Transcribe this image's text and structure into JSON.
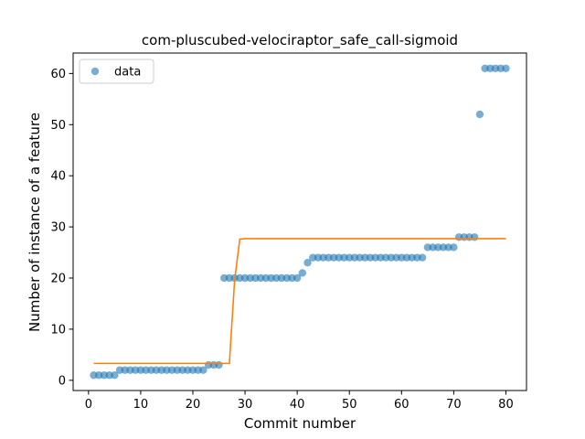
{
  "chart_data": {
    "type": "scatter",
    "title": "com-pluscubed-velociraptor_safe_call-sigmoid",
    "xlabel": "Commit number",
    "ylabel": "Number of instance of a feature",
    "xlim": [
      -2.95,
      83.95
    ],
    "ylim": [
      -2,
      64
    ],
    "xticks": [
      0,
      10,
      20,
      30,
      40,
      50,
      60,
      70,
      80
    ],
    "yticks": [
      0,
      10,
      20,
      30,
      40,
      50,
      60
    ],
    "legend": {
      "position": "top-left",
      "entries": [
        "data"
      ]
    },
    "grid": false,
    "series": [
      {
        "name": "data",
        "kind": "scatter",
        "color": "#1f77b4",
        "x": [
          1,
          2,
          3,
          4,
          5,
          6,
          7,
          8,
          9,
          10,
          11,
          12,
          13,
          14,
          15,
          16,
          17,
          18,
          19,
          20,
          21,
          22,
          23,
          24,
          25,
          26,
          27,
          28,
          29,
          30,
          31,
          32,
          33,
          34,
          35,
          36,
          37,
          38,
          39,
          40,
          41,
          42,
          43,
          44,
          45,
          46,
          47,
          48,
          49,
          50,
          51,
          52,
          53,
          54,
          55,
          56,
          57,
          58,
          59,
          60,
          61,
          62,
          63,
          64,
          65,
          66,
          67,
          68,
          69,
          70,
          71,
          72,
          73,
          74,
          75,
          76,
          77,
          78,
          79,
          80
        ],
        "y": [
          1,
          1,
          1,
          1,
          1,
          2,
          2,
          2,
          2,
          2,
          2,
          2,
          2,
          2,
          2,
          2,
          2,
          2,
          2,
          2,
          2,
          2,
          3,
          3,
          3,
          20,
          20,
          20,
          20,
          20,
          20,
          20,
          20,
          20,
          20,
          20,
          20,
          20,
          20,
          20,
          21,
          23,
          24,
          24,
          24,
          24,
          24,
          24,
          24,
          24,
          24,
          24,
          24,
          24,
          24,
          24,
          24,
          24,
          24,
          24,
          24,
          24,
          24,
          24,
          26,
          26,
          26,
          26,
          26,
          26,
          28,
          28,
          28,
          28,
          52,
          61,
          61,
          61,
          61,
          61
        ]
      },
      {
        "name": "",
        "kind": "line",
        "color": "#ff7f0e",
        "x": [
          1,
          2,
          3,
          4,
          5,
          6,
          7,
          8,
          9,
          10,
          11,
          12,
          13,
          14,
          15,
          16,
          17,
          18,
          19,
          20,
          21,
          22,
          23,
          24,
          25,
          26,
          27,
          28,
          29,
          30,
          31,
          32,
          33,
          34,
          35,
          36,
          37,
          38,
          39,
          40,
          41,
          42,
          43,
          44,
          45,
          46,
          47,
          48,
          49,
          50,
          51,
          52,
          53,
          54,
          55,
          56,
          57,
          58,
          59,
          60,
          61,
          62,
          63,
          64,
          65,
          66,
          67,
          68,
          69,
          70,
          71,
          72,
          73,
          74,
          75,
          76,
          77,
          78,
          79,
          80
        ],
        "y": [
          3.3,
          3.3,
          3.3,
          3.3,
          3.3,
          3.3,
          3.3,
          3.3,
          3.3,
          3.3,
          3.3,
          3.3,
          3.3,
          3.3,
          3.3,
          3.3,
          3.3,
          3.3,
          3.3,
          3.3,
          3.3,
          3.3,
          3.3,
          3.3,
          3.3,
          3.3,
          3.3,
          19.5,
          27.6,
          27.7,
          27.7,
          27.7,
          27.7,
          27.7,
          27.7,
          27.7,
          27.7,
          27.7,
          27.7,
          27.7,
          27.7,
          27.7,
          27.7,
          27.7,
          27.7,
          27.7,
          27.7,
          27.7,
          27.7,
          27.7,
          27.7,
          27.7,
          27.7,
          27.7,
          27.7,
          27.7,
          27.7,
          27.7,
          27.7,
          27.7,
          27.7,
          27.7,
          27.7,
          27.7,
          27.7,
          27.7,
          27.7,
          27.7,
          27.7,
          27.7,
          27.7,
          27.7,
          27.7,
          27.7,
          27.7,
          27.7,
          27.7,
          27.7,
          27.7,
          27.7
        ]
      }
    ]
  }
}
